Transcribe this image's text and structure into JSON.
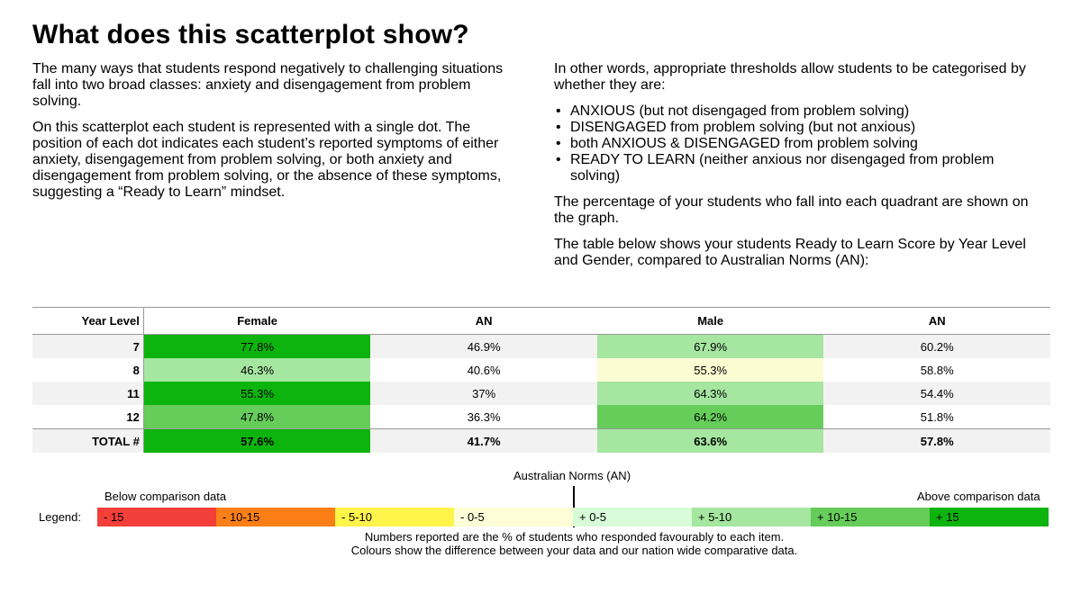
{
  "title": "What does this scatterplot show?",
  "left_paragraphs": [
    "The many ways that students respond negatively to challenging situations fall into two broad classes: anxiety and disengagement from problem solving.",
    "On this scatterplot each student is represented with a single dot. The position of each dot indicates each student’s reported symptoms of either anxiety, disengagement from problem solving, or both anxiety and disengagement from problem solving, or the absence of these symptoms, suggesting a “Ready to Learn” mindset."
  ],
  "right_intro": "In other words, appropriate thresholds allow students to be categorised by whether they are:",
  "bullets": [
    "ANXIOUS (but not disengaged from problem solving)",
    "DISENGAGED from problem solving (but not anxious)",
    "both ANXIOUS & DISENGAGED from problem solving",
    "READY TO LEARN (neither anxious nor disengaged from problem solving)"
  ],
  "right_para2": "The percentage of your students who fall into each quadrant are shown on the graph.",
  "right_para3": "The table below shows your students Ready to Learn Score by Year Level and Gender, compared to Australian Norms (AN):",
  "table": {
    "headers": [
      "Year Level",
      "Female",
      "AN",
      "Male",
      "AN"
    ],
    "rows": [
      {
        "year": "7",
        "female": "77.8%",
        "female_color": "#0db40d",
        "an_f": "46.9%",
        "male": "67.9%",
        "male_color": "#a5e6a0",
        "an_m": "60.2%"
      },
      {
        "year": "8",
        "female": "46.3%",
        "female_color": "#a5e6a0",
        "an_f": "40.6%",
        "male": "55.3%",
        "male_color": "#fcfcd2",
        "an_m": "58.8%"
      },
      {
        "year": "11",
        "female": "55.3%",
        "female_color": "#0db40d",
        "an_f": "37%",
        "male": "64.3%",
        "male_color": "#a5e6a0",
        "an_m": "54.4%"
      },
      {
        "year": "12",
        "female": "47.8%",
        "female_color": "#66cc5a",
        "an_f": "36.3%",
        "male": "64.2%",
        "male_color": "#66cc5a",
        "an_m": "51.8%"
      }
    ],
    "total": {
      "year": "TOTAL #",
      "female": "57.6%",
      "female_color": "#0db40d",
      "an_f": "41.7%",
      "male": "63.6%",
      "male_color": "#a5e6a0",
      "an_m": "57.8%"
    }
  },
  "legend": {
    "norms_label": "Australian Norms (AN)",
    "below_label": "Below comparison data",
    "above_label": "Above comparison data",
    "prefix": "Legend:",
    "segments": [
      {
        "label": "- 15",
        "color": "#f23f3a"
      },
      {
        "label": "- 10-15",
        "color": "#fb7e16"
      },
      {
        "label": "- 5-10",
        "color": "#fff44a"
      },
      {
        "label": "- 0-5",
        "color": "#fdfdd7"
      },
      {
        "label": "+ 0-5",
        "color": "#d7fcd7"
      },
      {
        "label": "+ 5-10",
        "color": "#a5e6a0"
      },
      {
        "label": "+ 10-15",
        "color": "#66cc5a"
      },
      {
        "label": "+ 15",
        "color": "#0db40d"
      }
    ],
    "note_line1": "Numbers reported are the % of students who responded favourably to each item.",
    "note_line2": "Colours show the difference between your data and our nation wide comparative data."
  }
}
